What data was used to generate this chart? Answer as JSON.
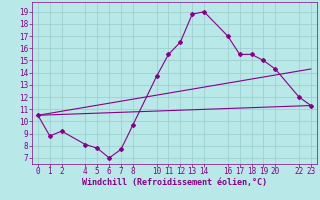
{
  "xlabel": "Windchill (Refroidissement éolien,°C)",
  "xlim": [
    -0.5,
    23.5
  ],
  "ylim": [
    6.5,
    19.8
  ],
  "xticks": [
    0,
    1,
    2,
    4,
    5,
    6,
    7,
    8,
    10,
    11,
    12,
    13,
    14,
    16,
    17,
    18,
    19,
    20,
    22,
    23
  ],
  "yticks": [
    7,
    8,
    9,
    10,
    11,
    12,
    13,
    14,
    15,
    16,
    17,
    18,
    19
  ],
  "line_color": "#880088",
  "bg_color": "#b8e8e8",
  "grid_color": "#99cccc",
  "line1_x": [
    0,
    1,
    2,
    4,
    5,
    6,
    7,
    8,
    10,
    11,
    12,
    13,
    14,
    16,
    17,
    18,
    19,
    20,
    22,
    23
  ],
  "line1_y": [
    10.5,
    8.8,
    9.2,
    8.1,
    7.8,
    7.0,
    7.7,
    9.7,
    13.7,
    15.5,
    16.5,
    18.8,
    19.0,
    17.0,
    15.5,
    15.5,
    15.0,
    14.3,
    12.0,
    11.3
  ],
  "line2_x": [
    0,
    23
  ],
  "line2_y": [
    10.5,
    11.3
  ],
  "line3_x": [
    0,
    23
  ],
  "line3_y": [
    10.5,
    14.3
  ],
  "tick_fontsize": 5.5,
  "xlabel_fontsize": 6.0
}
